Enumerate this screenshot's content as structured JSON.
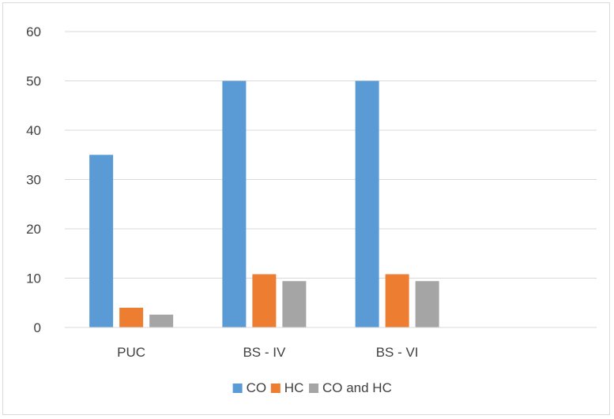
{
  "chart_data": {
    "type": "bar",
    "categories": [
      "PUC",
      "BS - IV",
      "BS - VI",
      ""
    ],
    "series": [
      {
        "name": "CO",
        "values": [
          35,
          50,
          50,
          null
        ],
        "color": "#5b9bd5"
      },
      {
        "name": "HC",
        "values": [
          4,
          10.8,
          10.8,
          null
        ],
        "color": "#ed7d31"
      },
      {
        "name": "CO and HC",
        "values": [
          2.6,
          9.4,
          9.4,
          null
        ],
        "color": "#a5a5a5"
      }
    ],
    "ylim": [
      0,
      60
    ],
    "yticks": [
      0,
      10,
      20,
      30,
      40,
      50,
      60
    ],
    "grid": true,
    "legend_position": "bottom",
    "title": "",
    "xlabel": "",
    "ylabel": ""
  }
}
